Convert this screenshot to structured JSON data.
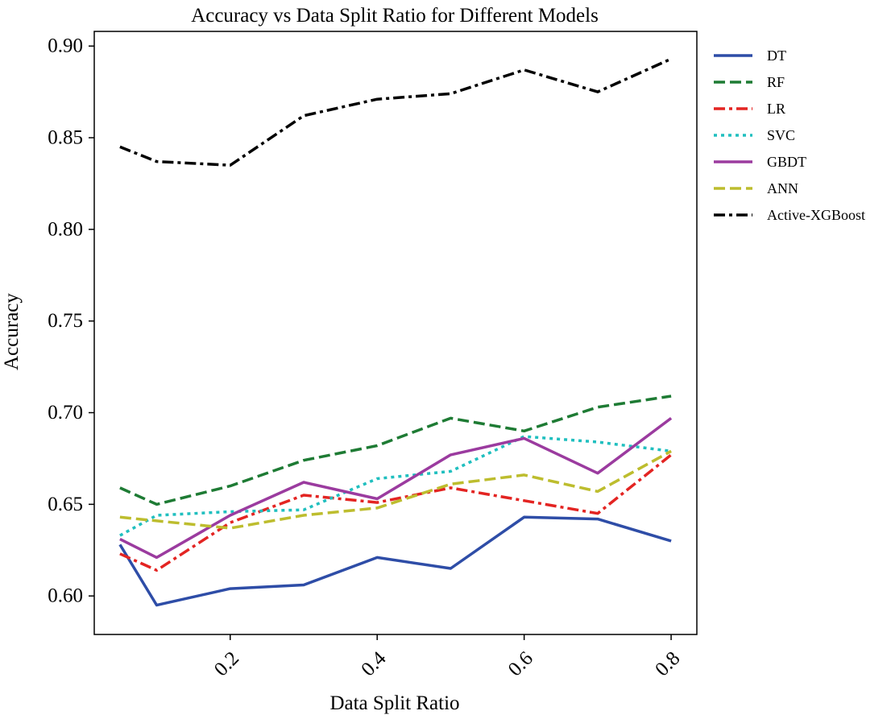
{
  "chart_data": {
    "type": "line",
    "title": "Accuracy vs Data Split Ratio for Different Models",
    "xlabel": "Data Split Ratio",
    "ylabel": "Accuracy",
    "x": [
      0.05,
      0.1,
      0.2,
      0.3,
      0.4,
      0.5,
      0.6,
      0.7,
      0.8
    ],
    "xlim": [
      0.015,
      0.835
    ],
    "ylim": [
      0.579,
      0.908
    ],
    "xticks": [
      0.2,
      0.4,
      0.6,
      0.8
    ],
    "xtick_labels": [
      "0.2",
      "0.4",
      "0.6",
      "0.8"
    ],
    "yticks": [
      0.6,
      0.65,
      0.7,
      0.75,
      0.8,
      0.85,
      0.9
    ],
    "ytick_labels": [
      "0.60",
      "0.65",
      "0.70",
      "0.75",
      "0.80",
      "0.85",
      "0.90"
    ],
    "grid": false,
    "legend_position": "outside-right-top",
    "series": [
      {
        "name": "DT",
        "color": "#2E4DA7",
        "dash": "solid",
        "values": [
          0.628,
          0.595,
          0.604,
          0.606,
          0.621,
          0.615,
          0.643,
          0.642,
          0.63
        ]
      },
      {
        "name": "RF",
        "color": "#1E7B34",
        "dash": "dashed",
        "values": [
          0.659,
          0.65,
          0.66,
          0.674,
          0.682,
          0.697,
          0.69,
          0.703,
          0.709
        ]
      },
      {
        "name": "LR",
        "color": "#E32422",
        "dash": "dashdot",
        "values": [
          0.623,
          0.614,
          0.64,
          0.655,
          0.651,
          0.659,
          0.652,
          0.645,
          0.677
        ]
      },
      {
        "name": "SVC",
        "color": "#20BFBF",
        "dash": "dotted",
        "values": [
          0.633,
          0.644,
          0.646,
          0.647,
          0.664,
          0.668,
          0.687,
          0.684,
          0.679
        ]
      },
      {
        "name": "GBDT",
        "color": "#9B3B9F",
        "dash": "solid",
        "values": [
          0.631,
          0.621,
          0.644,
          0.662,
          0.653,
          0.677,
          0.686,
          0.667,
          0.697
        ]
      },
      {
        "name": "ANN",
        "color": "#BDBD2E",
        "dash": "dashed",
        "values": [
          0.643,
          0.641,
          0.637,
          0.644,
          0.648,
          0.661,
          0.666,
          0.657,
          0.679
        ]
      },
      {
        "name": "Active-XGBoost",
        "color": "#000000",
        "dash": "dashdot",
        "values": [
          0.845,
          0.837,
          0.835,
          0.862,
          0.871,
          0.874,
          0.887,
          0.875,
          0.893
        ]
      }
    ]
  }
}
